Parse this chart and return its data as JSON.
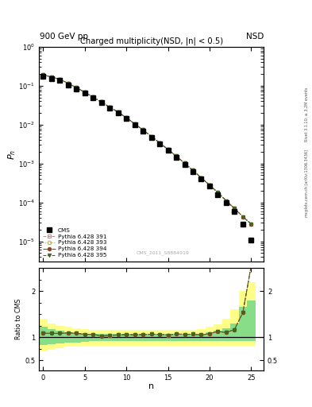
{
  "title_main": "Charged multiplicity(NSD, |n| < 0.5)",
  "header_left": "900 GeV pp",
  "header_right": "NSD",
  "right_label_top": "Rivet 3.1.10; ≥ 3.2M events",
  "right_label_bot": "mcplots.cern.ch [arXiv:1306.3436]",
  "watermark": "CMS_2011_S8884919",
  "ylabel_top": "P_n",
  "ylabel_bottom": "Ratio to CMS",
  "xlabel": "n",
  "ylim_top_lo": 3e-06,
  "ylim_top_hi": 1.0,
  "ylim_bottom_lo": 0.28,
  "ylim_bottom_hi": 2.5,
  "cms_n": [
    0,
    1,
    2,
    3,
    4,
    5,
    6,
    7,
    8,
    9,
    10,
    11,
    12,
    13,
    14,
    15,
    16,
    17,
    18,
    19,
    20,
    21,
    22,
    23,
    24,
    25
  ],
  "cms_p": [
    0.175,
    0.155,
    0.135,
    0.106,
    0.082,
    0.064,
    0.048,
    0.037,
    0.027,
    0.02,
    0.0142,
    0.01,
    0.0069,
    0.0047,
    0.0032,
    0.0022,
    0.00145,
    0.00096,
    0.00063,
    0.00041,
    0.00026,
    0.00016,
    0.0001,
    6e-05,
    2.8e-05,
    1.1e-05
  ],
  "py391_n": [
    0,
    1,
    2,
    3,
    4,
    5,
    6,
    7,
    8,
    9,
    10,
    11,
    12,
    13,
    14,
    15,
    16,
    17,
    18,
    19,
    20,
    21,
    22,
    23,
    24,
    25
  ],
  "py391_p": [
    0.19,
    0.168,
    0.146,
    0.116,
    0.089,
    0.068,
    0.051,
    0.038,
    0.028,
    0.021,
    0.015,
    0.0105,
    0.0073,
    0.005,
    0.0034,
    0.0023,
    0.00155,
    0.00102,
    0.00067,
    0.00043,
    0.00028,
    0.00018,
    0.00011,
    7e-05,
    4.3e-05,
    2.8e-05
  ],
  "py393_n": [
    0,
    1,
    2,
    3,
    4,
    5,
    6,
    7,
    8,
    9,
    10,
    11,
    12,
    13,
    14,
    15,
    16,
    17,
    18,
    19,
    20,
    21,
    22,
    23,
    24,
    25
  ],
  "py393_p": [
    0.19,
    0.168,
    0.146,
    0.116,
    0.089,
    0.068,
    0.051,
    0.038,
    0.028,
    0.021,
    0.015,
    0.0105,
    0.0073,
    0.005,
    0.0034,
    0.0023,
    0.00155,
    0.00102,
    0.00067,
    0.00043,
    0.00028,
    0.00018,
    0.00011,
    7e-05,
    4.3e-05,
    2.8e-05
  ],
  "py394_n": [
    0,
    1,
    2,
    3,
    4,
    5,
    6,
    7,
    8,
    9,
    10,
    11,
    12,
    13,
    14,
    15,
    16,
    17,
    18,
    19,
    20,
    21,
    22,
    23,
    24,
    25
  ],
  "py394_p": [
    0.19,
    0.168,
    0.146,
    0.116,
    0.089,
    0.068,
    0.051,
    0.038,
    0.028,
    0.021,
    0.015,
    0.0105,
    0.0073,
    0.005,
    0.0034,
    0.0023,
    0.00155,
    0.00102,
    0.00067,
    0.00043,
    0.00028,
    0.00018,
    0.00011,
    7e-05,
    4.3e-05,
    2.8e-05
  ],
  "py395_n": [
    0,
    1,
    2,
    3,
    4,
    5,
    6,
    7,
    8,
    9,
    10,
    11,
    12,
    13,
    14,
    15,
    16,
    17,
    18,
    19,
    20,
    21,
    22,
    23,
    24,
    25
  ],
  "py395_p": [
    0.19,
    0.168,
    0.146,
    0.116,
    0.089,
    0.068,
    0.051,
    0.038,
    0.028,
    0.021,
    0.015,
    0.0105,
    0.0073,
    0.005,
    0.0034,
    0.0023,
    0.00155,
    0.00102,
    0.00067,
    0.00043,
    0.00028,
    0.00018,
    0.00011,
    7e-05,
    4.3e-05,
    2.8e-05
  ],
  "color_cms": "#000000",
  "color_391": "#cc8888",
  "color_393": "#aaaa44",
  "color_394": "#884422",
  "color_395": "#446622",
  "xlim_lo": -0.5,
  "xlim_hi": 26.5,
  "xticks": [
    0,
    5,
    10,
    15,
    20,
    25
  ],
  "band_n": [
    0,
    1,
    2,
    3,
    4,
    5,
    6,
    7,
    8,
    9,
    10,
    11,
    12,
    13,
    14,
    15,
    16,
    17,
    18,
    19,
    20,
    21,
    22,
    23,
    24,
    25
  ],
  "band_ylo": [
    0.7,
    0.73,
    0.76,
    0.79,
    0.8,
    0.81,
    0.82,
    0.82,
    0.82,
    0.82,
    0.82,
    0.82,
    0.82,
    0.82,
    0.82,
    0.82,
    0.82,
    0.82,
    0.82,
    0.82,
    0.82,
    0.82,
    0.82,
    0.82,
    0.82,
    0.82
  ],
  "band_yhi": [
    1.4,
    1.3,
    1.25,
    1.22,
    1.19,
    1.17,
    1.16,
    1.15,
    1.15,
    1.15,
    1.15,
    1.15,
    1.15,
    1.15,
    1.15,
    1.15,
    1.15,
    1.15,
    1.16,
    1.18,
    1.22,
    1.28,
    1.4,
    1.6,
    2.0,
    2.2
  ],
  "band_glo": [
    0.83,
    0.85,
    0.87,
    0.88,
    0.89,
    0.9,
    0.91,
    0.91,
    0.91,
    0.91,
    0.91,
    0.91,
    0.91,
    0.91,
    0.91,
    0.91,
    0.91,
    0.91,
    0.91,
    0.91,
    0.91,
    0.91,
    0.91,
    0.91,
    0.91,
    0.91
  ],
  "band_ghi": [
    1.22,
    1.17,
    1.14,
    1.11,
    1.09,
    1.08,
    1.07,
    1.07,
    1.07,
    1.07,
    1.07,
    1.07,
    1.07,
    1.07,
    1.07,
    1.07,
    1.07,
    1.07,
    1.07,
    1.08,
    1.1,
    1.14,
    1.2,
    1.3,
    1.65,
    1.8
  ]
}
